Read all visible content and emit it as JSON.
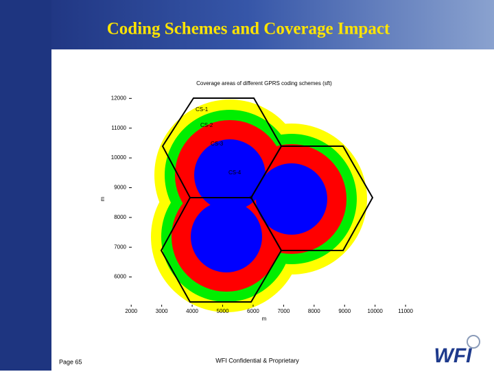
{
  "slide_title": "Coding Schemes and Coverage Impact",
  "chart_data": {
    "type": "coverage",
    "title": "Coverage areas of different GPRS coding schemes (sft)",
    "x_label": "m",
    "y_label": "m",
    "region_labels": [
      "CS-1",
      "CS-2",
      "CS-3",
      "CS-4"
    ],
    "site_label": "o",
    "xlim": [
      1500,
      11200
    ],
    "ylim": [
      5000,
      12400
    ],
    "xticks": [
      2000,
      3000,
      4000,
      5000,
      6000,
      7000,
      8000,
      9000,
      10000,
      11000
    ],
    "yticks": [
      6000,
      7000,
      8000,
      9000,
      10000,
      11000,
      12000
    ]
  },
  "footer": {
    "page": "Page 65",
    "confidential": "WFI Confidential & Proprietary",
    "logo": "WFI"
  }
}
